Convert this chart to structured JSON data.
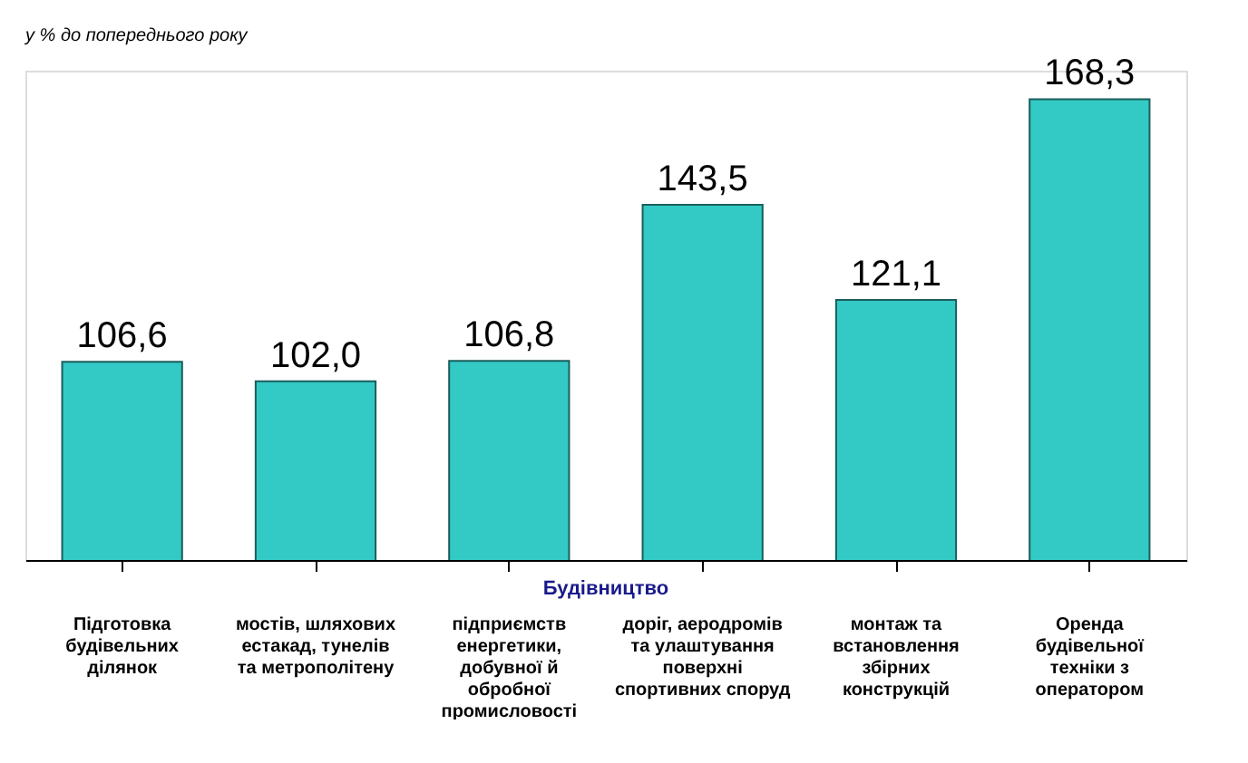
{
  "chart_data": {
    "type": "bar",
    "ylabel": "у % до попереднього року",
    "categories": [
      "Підготовка будівельних ділянок",
      "мостів, шляхових естакад, тунелів та метрополітену",
      "підприємств енергетики, добувної й обробної промисловості",
      "доріг, аеродромів та улаштування поверхні спортивних споруд",
      "монтаж та встановлення збірних конструкцій",
      "Оренда будівельної техніки з оператором"
    ],
    "values": [
      106.6,
      102.0,
      106.8,
      143.5,
      121.1,
      168.3
    ],
    "value_labels": [
      "106,6",
      "102,0",
      "106,8",
      "143,5",
      "121,1",
      "168,3"
    ],
    "color": "#33c9c4",
    "ylim": [
      60,
      175
    ],
    "tick_labels": "x",
    "grid": false,
    "annotations": [
      "Будівництво"
    ]
  }
}
